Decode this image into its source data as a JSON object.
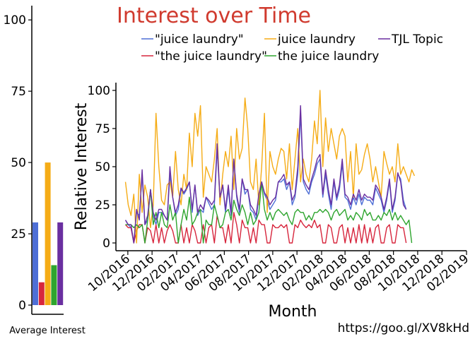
{
  "chart_data": [
    {
      "type": "bar",
      "xlabel": "Average Interest",
      "ylim": [
        0,
        105
      ],
      "yticks": [
        0,
        25,
        50,
        75,
        100
      ],
      "bars": [
        {
          "series": "\"juice laundry\"",
          "value": 29,
          "color": "#4e6fd6"
        },
        {
          "series": "\"the juice laundry\"",
          "value": 8,
          "color": "#d7263d"
        },
        {
          "series": "juice laundry",
          "value": 50,
          "color": "#f5ac16"
        },
        {
          "series": "the juice laundry",
          "value": 14,
          "color": "#2ea52e"
        },
        {
          "series": "TJL Topic",
          "value": 29,
          "color": "#6a2fa0"
        }
      ]
    },
    {
      "type": "line",
      "title": "Interest over Time",
      "xlabel": "Month",
      "ylabel": "Relative Interest",
      "ylim": [
        0,
        100
      ],
      "yticks": [
        0,
        25,
        50,
        75,
        100
      ],
      "xlim": [
        "2016-09-01",
        "2019-02-01"
      ],
      "xticks": [
        "10/2016",
        "12/2016",
        "02/2017",
        "04/2017",
        "06/2017",
        "08/2017",
        "10/2017",
        "12/2017",
        "02/2018",
        "04/2018",
        "06/2018",
        "08/2018",
        "10/2018",
        "12/2018",
        "02/2019"
      ],
      "x_start": "2016-09-25",
      "x_step_days": 7,
      "series": [
        {
          "name": "\"juice laundry\"",
          "color": "#4e6fd6",
          "values": [
            15,
            12,
            10,
            0,
            20,
            18,
            45,
            12,
            15,
            35,
            18,
            12,
            20,
            20,
            18,
            15,
            45,
            30,
            18,
            22,
            35,
            32,
            35,
            40,
            20,
            38,
            18,
            22,
            20,
            30,
            26,
            22,
            25,
            62,
            28,
            38,
            20,
            35,
            18,
            55,
            30,
            20,
            42,
            32,
            35,
            22,
            20,
            15,
            30,
            40,
            32,
            28,
            22,
            25,
            28,
            40,
            40,
            42,
            35,
            40,
            25,
            30,
            45,
            85,
            40,
            35,
            32,
            40,
            45,
            52,
            55,
            30,
            45,
            32,
            22,
            40,
            28,
            35,
            52,
            30,
            28,
            22,
            30,
            25,
            32,
            25,
            30,
            28,
            28,
            25,
            36,
            32,
            28,
            20,
            28,
            40,
            20,
            28,
            45,
            42,
            28,
            22
          ]
        },
        {
          "name": "\"the juice laundry\"",
          "color": "#d7263d",
          "values": [
            12,
            10,
            10,
            0,
            8,
            12,
            12,
            0,
            10,
            8,
            0,
            12,
            0,
            10,
            0,
            8,
            12,
            8,
            0,
            0,
            12,
            0,
            10,
            0,
            12,
            8,
            0,
            0,
            12,
            0,
            10,
            12,
            0,
            18,
            10,
            10,
            0,
            12,
            0,
            20,
            12,
            0,
            15,
            10,
            10,
            0,
            10,
            0,
            15,
            12,
            12,
            0,
            0,
            12,
            10,
            10,
            12,
            10,
            12,
            0,
            0,
            12,
            10,
            15,
            12,
            10,
            12,
            10,
            15,
            10,
            12,
            0,
            0,
            12,
            10,
            0,
            0,
            10,
            12,
            0,
            10,
            0,
            10,
            0,
            12,
            0,
            12,
            0,
            10,
            0,
            10,
            12,
            0,
            0,
            10,
            12,
            0,
            0,
            12,
            10,
            10,
            0
          ]
        },
        {
          "name": "juice laundry",
          "color": "#f5ac16",
          "values": [
            40,
            25,
            18,
            32,
            0,
            45,
            20,
            38,
            30,
            10,
            25,
            85,
            50,
            28,
            25,
            38,
            40,
            30,
            60,
            35,
            25,
            45,
            35,
            72,
            50,
            85,
            70,
            90,
            30,
            50,
            45,
            40,
            55,
            75,
            25,
            45,
            60,
            50,
            70,
            35,
            75,
            55,
            62,
            95,
            75,
            40,
            35,
            55,
            25,
            50,
            85,
            20,
            60,
            50,
            45,
            55,
            62,
            60,
            42,
            65,
            35,
            55,
            75,
            40,
            55,
            45,
            40,
            55,
            80,
            65,
            100,
            50,
            82,
            60,
            75,
            65,
            55,
            70,
            75,
            70,
            40,
            60,
            30,
            65,
            45,
            48,
            58,
            65,
            55,
            40,
            50,
            40,
            30,
            60,
            52,
            45,
            50,
            40,
            65,
            45,
            50,
            45,
            40,
            48,
            44
          ]
        },
        {
          "name": "the juice laundry",
          "color": "#2ea52e",
          "values": [
            12,
            12,
            12,
            10,
            12,
            10,
            12,
            0,
            15,
            35,
            12,
            20,
            10,
            20,
            12,
            10,
            25,
            15,
            20,
            0,
            12,
            22,
            15,
            30,
            12,
            15,
            20,
            22,
            0,
            15,
            12,
            12,
            25,
            18,
            10,
            12,
            20,
            22,
            15,
            28,
            22,
            18,
            25,
            20,
            12,
            20,
            12,
            15,
            20,
            40,
            22,
            15,
            20,
            15,
            20,
            22,
            20,
            18,
            20,
            15,
            12,
            20,
            22,
            20,
            20,
            15,
            18,
            15,
            20,
            20,
            22,
            20,
            22,
            20,
            15,
            20,
            22,
            18,
            20,
            22,
            15,
            18,
            15,
            20,
            18,
            15,
            22,
            18,
            20,
            15,
            15,
            18,
            15,
            20,
            18,
            22,
            15,
            20,
            15,
            18,
            15,
            12,
            15,
            0
          ]
        },
        {
          "name": "TJL Topic",
          "color": "#6a2fa0",
          "values": [
            15,
            12,
            12,
            0,
            22,
            15,
            48,
            12,
            18,
            35,
            20,
            15,
            22,
            22,
            18,
            15,
            50,
            30,
            20,
            25,
            36,
            33,
            36,
            40,
            22,
            38,
            20,
            25,
            22,
            30,
            28,
            25,
            28,
            65,
            30,
            38,
            22,
            38,
            20,
            55,
            32,
            22,
            42,
            35,
            35,
            25,
            22,
            18,
            32,
            40,
            33,
            30,
            25,
            28,
            30,
            40,
            42,
            45,
            38,
            40,
            28,
            32,
            50,
            90,
            42,
            38,
            35,
            42,
            48,
            55,
            58,
            32,
            48,
            35,
            25,
            42,
            30,
            38,
            55,
            32,
            30,
            25,
            32,
            28,
            35,
            28,
            32,
            30,
            30,
            28,
            38,
            35,
            30,
            22,
            30,
            42,
            22,
            30,
            46,
            40,
            25,
            22
          ]
        }
      ]
    }
  ],
  "footer": {
    "url": "https://goo.gl/XV8kHd"
  }
}
